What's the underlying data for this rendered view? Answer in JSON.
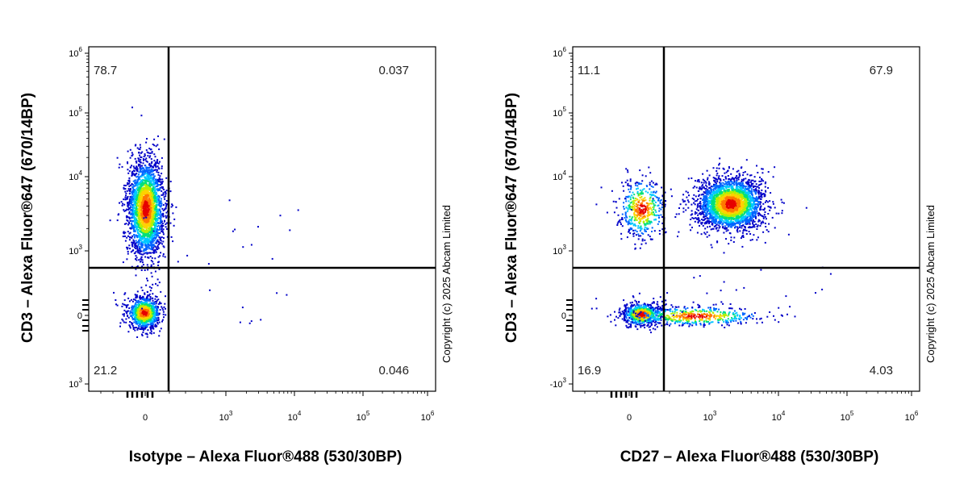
{
  "chart_data": [
    {
      "type": "scatter",
      "subtype": "flow-cytometry-density",
      "xlabel": "Isotype – Alexa Fluor®488 (530/30BP)",
      "ylabel": "CD3 – Alexa Fluor®647 (670/14BP)",
      "x_scale": "biexponential",
      "y_scale": "biexponential",
      "x_ticks": [
        {
          "base": "0",
          "exp": ""
        },
        {
          "base": "10",
          "exp": "3"
        },
        {
          "base": "10",
          "exp": "4"
        },
        {
          "base": "10",
          "exp": "5"
        },
        {
          "base": "10",
          "exp": "6"
        }
      ],
      "y_ticks": [
        {
          "base": "10",
          "exp": "3"
        },
        {
          "base": "0",
          "exp": ""
        },
        {
          "base": "10",
          "exp": "3"
        },
        {
          "base": "10",
          "exp": "4"
        },
        {
          "base": "10",
          "exp": "5"
        },
        {
          "base": "10",
          "exp": "6"
        }
      ],
      "quadrants": {
        "upper_left": "78.7",
        "upper_right": "0.037",
        "lower_left": "21.2",
        "lower_right": "0.046"
      },
      "populations": [
        {
          "x": 0,
          "y": 3500,
          "weight": 0.79
        },
        {
          "x": 0,
          "y": 0,
          "weight": 0.21
        }
      ]
    },
    {
      "type": "scatter",
      "subtype": "flow-cytometry-density",
      "xlabel": "CD27 – Alexa Fluor®488 (530/30BP)",
      "ylabel": "CD3 – Alexa Fluor®647 (670/14BP)",
      "x_scale": "biexponential",
      "y_scale": "biexponential",
      "x_ticks": [
        {
          "base": "0",
          "exp": ""
        },
        {
          "base": "10",
          "exp": "3"
        },
        {
          "base": "10",
          "exp": "4"
        },
        {
          "base": "10",
          "exp": "5"
        },
        {
          "base": "10",
          "exp": "6"
        }
      ],
      "y_ticks": [
        {
          "base": "-10",
          "exp": "3"
        },
        {
          "base": "0",
          "exp": ""
        },
        {
          "base": "10",
          "exp": "3"
        },
        {
          "base": "10",
          "exp": "4"
        },
        {
          "base": "10",
          "exp": "5"
        },
        {
          "base": "10",
          "exp": "6"
        }
      ],
      "quadrants": {
        "upper_left": "11.1",
        "upper_right": "67.9",
        "lower_left": "16.9",
        "lower_right": "4.03"
      },
      "populations": [
        {
          "x": 0,
          "y": 3200,
          "weight": 0.11
        },
        {
          "x": 1800,
          "y": 3800,
          "weight": 0.68
        },
        {
          "x": 0,
          "y": 0,
          "weight": 0.17
        },
        {
          "x": 800,
          "y": 0,
          "weight": 0.04
        }
      ]
    }
  ],
  "copyright": "Copyright (c) 2025 Abcam Limited",
  "colors": {
    "density": [
      "#0000c8",
      "#0064ff",
      "#00c8ff",
      "#00e07a",
      "#b4f000",
      "#ffd200",
      "#ff7800",
      "#e60000"
    ],
    "gate": "#000000"
  }
}
